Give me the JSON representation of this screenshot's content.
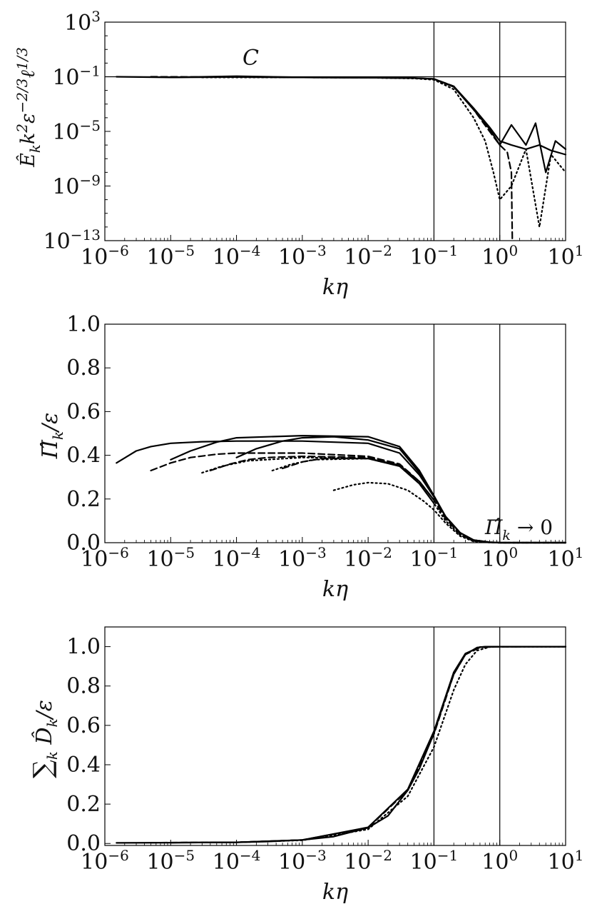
{
  "chart_data": [
    {
      "type": "line",
      "id": "top",
      "xscale": "log",
      "yscale": "log",
      "xlim": [
        1e-06,
        10
      ],
      "ylim": [
        1e-13,
        1000
      ],
      "xlabel": "kη",
      "ylabel": "Ê_k k² ε^(-2/3) ℓ^(1/3)",
      "xticks": [
        {
          "base": "10",
          "exp": "−6"
        },
        {
          "base": "10",
          "exp": "−5"
        },
        {
          "base": "10",
          "exp": "−4"
        },
        {
          "base": "10",
          "exp": "−3"
        },
        {
          "base": "10",
          "exp": "−2"
        },
        {
          "base": "10",
          "exp": "−1"
        },
        {
          "base": "10",
          "exp": "0"
        },
        {
          "base": "10",
          "exp": "1"
        }
      ],
      "yticks": [
        {
          "value": 1000,
          "base": "10",
          "exp": "3"
        },
        {
          "value": 0.1,
          "base": "10",
          "exp": "−1"
        },
        {
          "value": 1e-05,
          "base": "10",
          "exp": "−5"
        },
        {
          "value": 1e-09,
          "base": "10",
          "exp": "−9"
        },
        {
          "value": 1e-13,
          "base": "10",
          "exp": "−13"
        }
      ],
      "vlines": [
        0.1,
        1
      ],
      "hlines": [
        0.1
      ],
      "annotations": [
        {
          "text": "C",
          "x": 0.00012,
          "y": 0.4
        }
      ],
      "series": [
        {
          "style": "solid",
          "x": [
            1.5e-06,
            1e-05,
            0.0001,
            0.001,
            0.01,
            0.05,
            0.1,
            0.2,
            0.4,
            0.7,
            1,
            1.5,
            2.5,
            4,
            6,
            10
          ],
          "y": [
            0.1,
            0.09,
            0.095,
            0.09,
            0.085,
            0.08,
            0.07,
            0.02,
            0.0005,
            2e-05,
            2e-06,
            1e-06,
            5e-07,
            1e-06,
            4e-07,
            2e-07
          ]
        },
        {
          "style": "solid",
          "x": [
            1e-05,
            0.0001,
            0.001,
            0.01,
            0.05,
            0.1,
            0.2,
            0.4,
            0.7,
            1,
            1.5,
            2.5,
            3.5,
            5,
            7,
            10
          ],
          "y": [
            0.09,
            0.11,
            0.09,
            0.085,
            0.08,
            0.068,
            0.018,
            0.0004,
            1.5e-05,
            1e-06,
            3e-05,
            1e-06,
            4e-05,
            1e-08,
            2e-06,
            5e-07
          ]
        },
        {
          "style": "dashed",
          "x": [
            5e-06,
            0.0001,
            0.001,
            0.01,
            0.05,
            0.1,
            0.2,
            0.4,
            0.7,
            1,
            1.3,
            1.5,
            1.55
          ],
          "y": [
            0.1,
            0.095,
            0.09,
            0.085,
            0.08,
            0.07,
            0.02,
            0.0004,
            1e-05,
            1e-06,
            3e-07,
            1e-08,
            1e-13
          ]
        },
        {
          "style": "dotted",
          "x": [
            3e-05,
            0.0001,
            0.001,
            0.01,
            0.05,
            0.1,
            0.2,
            0.4,
            0.6,
            0.8,
            1,
            1.5,
            2.5,
            4,
            6,
            10
          ],
          "y": [
            0.09,
            0.09,
            0.09,
            0.085,
            0.075,
            0.06,
            0.012,
            0.0001,
            2e-06,
            1e-08,
            1e-10,
            1e-09,
            5e-07,
            1e-12,
            2e-07,
            1e-08
          ]
        }
      ]
    },
    {
      "type": "line",
      "id": "middle",
      "xscale": "log",
      "yscale": "linear",
      "xlim": [
        1e-06,
        10
      ],
      "ylim": [
        0,
        1
      ],
      "xlabel": "kη",
      "ylabel": "Π̂_k/ε",
      "xticks": [
        {
          "base": "10",
          "exp": "−6"
        },
        {
          "base": "10",
          "exp": "−5"
        },
        {
          "base": "10",
          "exp": "−4"
        },
        {
          "base": "10",
          "exp": "−3"
        },
        {
          "base": "10",
          "exp": "−2"
        },
        {
          "base": "10",
          "exp": "−1"
        },
        {
          "base": "10",
          "exp": "0"
        },
        {
          "base": "10",
          "exp": "1"
        }
      ],
      "yticks": [
        "0.0",
        "0.2",
        "0.4",
        "0.6",
        "0.8",
        "1.0"
      ],
      "vlines": [
        0.1,
        1
      ],
      "annotations": [
        {
          "text": "Π̂_k → 0",
          "x": 0.6,
          "y": 0.06
        }
      ],
      "series": [
        {
          "style": "solid",
          "x": [
            1.5e-06,
            3e-06,
            5e-06,
            1e-05,
            3e-05,
            0.0001,
            0.001,
            0.01,
            0.03,
            0.06,
            0.1,
            0.15,
            0.25,
            0.4,
            0.7,
            1,
            10
          ],
          "y": [
            0.365,
            0.42,
            0.44,
            0.455,
            0.462,
            0.465,
            0.465,
            0.455,
            0.41,
            0.31,
            0.21,
            0.12,
            0.045,
            0.012,
            0.002,
            0,
            0
          ]
        },
        {
          "style": "solid",
          "x": [
            1e-05,
            2e-05,
            5e-05,
            0.0001,
            0.001,
            0.01,
            0.03,
            0.06,
            0.1,
            0.15,
            0.25,
            0.4,
            0.7,
            1,
            10
          ],
          "y": [
            0.38,
            0.42,
            0.46,
            0.48,
            0.49,
            0.485,
            0.44,
            0.33,
            0.215,
            0.12,
            0.045,
            0.012,
            0.002,
            0,
            0
          ]
        },
        {
          "style": "solid",
          "x": [
            0.0001,
            0.0002,
            0.0005,
            0.001,
            0.003,
            0.01,
            0.03,
            0.06,
            0.1,
            0.15,
            0.25,
            0.4,
            0.7,
            1,
            10
          ],
          "y": [
            0.39,
            0.43,
            0.465,
            0.48,
            0.485,
            0.47,
            0.43,
            0.32,
            0.21,
            0.12,
            0.045,
            0.012,
            0.002,
            0,
            0
          ]
        },
        {
          "style": "dashed",
          "x": [
            5e-06,
            1e-05,
            2e-05,
            5e-05,
            0.0001,
            0.001,
            0.01,
            0.03,
            0.06,
            0.1,
            0.15,
            0.25,
            0.4,
            0.7,
            1,
            10
          ],
          "y": [
            0.33,
            0.365,
            0.39,
            0.405,
            0.41,
            0.41,
            0.395,
            0.36,
            0.28,
            0.195,
            0.11,
            0.04,
            0.01,
            0.002,
            0,
            0
          ]
        },
        {
          "style": "dashed",
          "x": [
            4e-05,
            8e-05,
            0.00015,
            0.0003,
            0.001,
            0.01,
            0.03,
            0.06,
            0.1
          ],
          "y": [
            0.33,
            0.36,
            0.38,
            0.39,
            0.395,
            0.39,
            0.355,
            0.28,
            0.195
          ]
        },
        {
          "style": "dashed",
          "x": [
            0.0005,
            0.001,
            0.002,
            0.01,
            0.03,
            0.06,
            0.1
          ],
          "y": [
            0.34,
            0.37,
            0.385,
            0.385,
            0.355,
            0.28,
            0.195
          ]
        },
        {
          "style": "dotted",
          "x": [
            3e-05,
            6e-05,
            0.00015,
            0.001,
            0.01,
            0.03,
            0.06,
            0.1,
            0.15,
            0.25,
            0.4,
            0.7,
            1,
            10
          ],
          "y": [
            0.32,
            0.35,
            0.375,
            0.39,
            0.385,
            0.35,
            0.27,
            0.18,
            0.1,
            0.035,
            0.008,
            0.001,
            0,
            0
          ]
        },
        {
          "style": "dotted",
          "x": [
            0.00035,
            0.0007,
            0.0015,
            0.01,
            0.03,
            0.06,
            0.1
          ],
          "y": [
            0.33,
            0.36,
            0.38,
            0.385,
            0.35,
            0.27,
            0.18
          ]
        },
        {
          "style": "dotted",
          "x": [
            0.003,
            0.006,
            0.01,
            0.02,
            0.04,
            0.07,
            0.1,
            0.15,
            0.25,
            0.4,
            0.7,
            1
          ],
          "y": [
            0.24,
            0.265,
            0.275,
            0.27,
            0.24,
            0.19,
            0.15,
            0.09,
            0.03,
            0.006,
            0.001,
            0
          ]
        }
      ]
    },
    {
      "type": "line",
      "id": "bottom",
      "xscale": "log",
      "yscale": "linear",
      "xlim": [
        1e-06,
        10
      ],
      "ylim": [
        -0.01,
        1.1
      ],
      "xlabel": "kη",
      "ylabel": "Σ_k D̂_k/ε",
      "xticks": [
        {
          "base": "10",
          "exp": "−6"
        },
        {
          "base": "10",
          "exp": "−5"
        },
        {
          "base": "10",
          "exp": "−4"
        },
        {
          "base": "10",
          "exp": "−3"
        },
        {
          "base": "10",
          "exp": "−2"
        },
        {
          "base": "10",
          "exp": "−1"
        },
        {
          "base": "10",
          "exp": "0"
        },
        {
          "base": "10",
          "exp": "1"
        }
      ],
      "yticks": [
        "0.0",
        "0.2",
        "0.4",
        "0.6",
        "0.8",
        "1.0"
      ],
      "vlines": [
        0.1,
        1
      ],
      "series": [
        {
          "style": "solid",
          "x": [
            1.5e-06,
            1e-05,
            0.0001,
            0.0003,
            0.001,
            0.003,
            0.01,
            0.02,
            0.04,
            0.06,
            0.1,
            0.15,
            0.2,
            0.3,
            0.45,
            0.6,
            1,
            10
          ],
          "y": [
            0.003,
            0.004,
            0.006,
            0.01,
            0.018,
            0.035,
            0.08,
            0.14,
            0.27,
            0.38,
            0.56,
            0.74,
            0.86,
            0.96,
            0.995,
            1.0,
            1.0,
            1.0
          ]
        },
        {
          "style": "solid",
          "x": [
            1e-05,
            0.0001,
            0.001,
            0.01,
            0.04,
            0.1,
            0.2,
            0.3,
            0.5,
            1,
            10
          ],
          "y": [
            0.004,
            0.006,
            0.018,
            0.082,
            0.275,
            0.57,
            0.87,
            0.965,
            0.998,
            1.0,
            1.0
          ]
        },
        {
          "style": "dashed",
          "x": [
            5e-06,
            0.0001,
            0.001,
            0.01,
            0.04,
            0.1,
            0.2,
            0.3,
            0.5,
            1,
            2
          ],
          "y": [
            0.004,
            0.006,
            0.018,
            0.08,
            0.27,
            0.555,
            0.86,
            0.96,
            0.996,
            1.0,
            1.0
          ]
        },
        {
          "style": "dotted",
          "x": [
            3e-05,
            0.0001,
            0.001,
            0.01,
            0.04,
            0.1,
            0.15,
            0.2,
            0.3,
            0.45,
            0.7,
            1,
            10
          ],
          "y": [
            0.005,
            0.006,
            0.016,
            0.072,
            0.24,
            0.49,
            0.66,
            0.78,
            0.91,
            0.98,
            0.998,
            1.0,
            1.0
          ]
        }
      ]
    }
  ]
}
